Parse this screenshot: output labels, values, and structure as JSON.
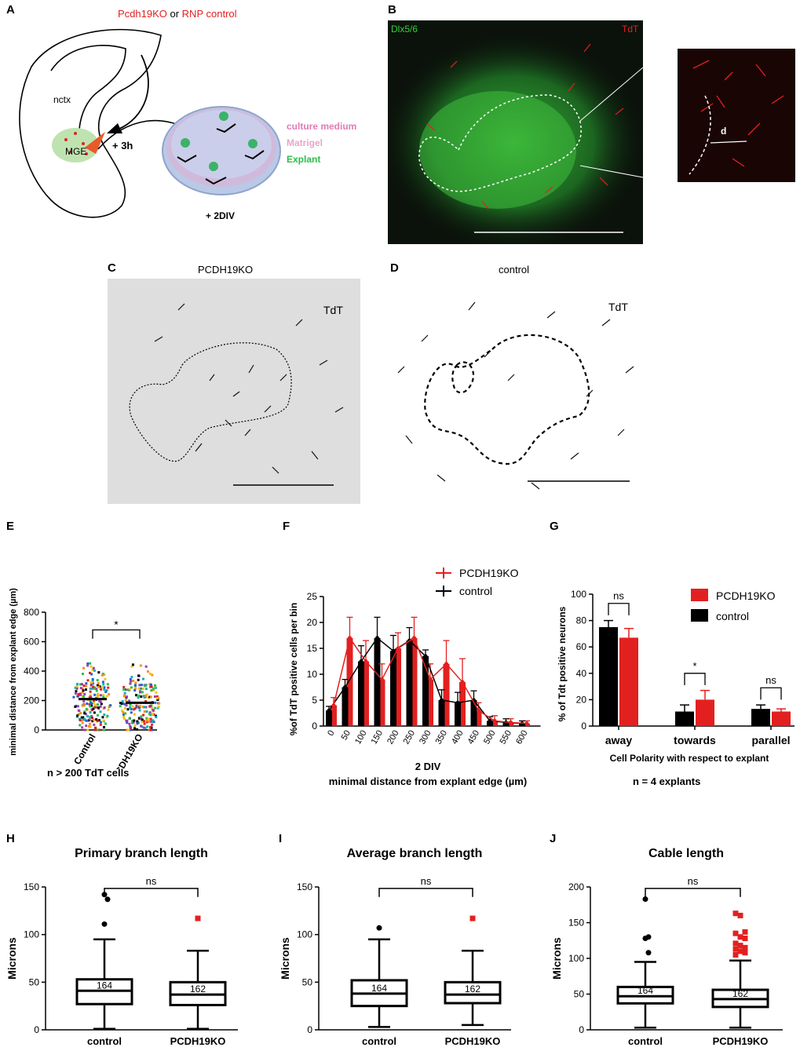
{
  "panels": {
    "A": {
      "letter": "A",
      "title_red1": "Pcdh19KO",
      "title_or": " or ",
      "title_red2": "RNP control",
      "nctx": "nctx",
      "mge": "MGE",
      "plus3h": "+ 3h",
      "culture_medium": "culture medium",
      "matrigel": "Matrigel",
      "explant": "Explant",
      "plus2div": "+ 2DIV"
    },
    "B": {
      "letter": "B",
      "dlx": "Dlx5/6",
      "tdt": "TdT",
      "d": "d"
    },
    "C": {
      "letter": "C",
      "title": "PCDH19KO",
      "tdt": "TdT"
    },
    "D": {
      "letter": "D",
      "title": "control",
      "tdt": "TdT"
    },
    "E": {
      "letter": "E",
      "n_label": "n > 200 TdT cells"
    },
    "F": {
      "letter": "F"
    },
    "G": {
      "letter": "G",
      "n_label": "n = 4 explants"
    },
    "H": {
      "letter": "H"
    },
    "I": {
      "letter": "I"
    },
    "J": {
      "letter": "J"
    }
  },
  "colors": {
    "red": "#e32020",
    "black": "#000000",
    "green": "#2bbd4a",
    "pink": "#e07bb5"
  },
  "chart_data": [
    {
      "panel": "E",
      "type": "scatter",
      "ylabel": "minimal distance from explant edge (µm)",
      "ylim": [
        0,
        800
      ],
      "yticks": [
        0,
        200,
        400,
        600,
        800
      ],
      "categories": [
        "Control",
        "PCDH19KO"
      ],
      "means": [
        210,
        185
      ],
      "significance": "*"
    },
    {
      "panel": "F",
      "type": "bar",
      "xlabel": "minimal distance from explant edge (µm)",
      "xlabel_top": "2 DIV",
      "ylabel": "%of TdT positive cells per bin",
      "ylim": [
        0,
        25
      ],
      "yticks": [
        0,
        5,
        10,
        15,
        20,
        25
      ],
      "categories": [
        "0",
        "50",
        "100",
        "150",
        "200",
        "250",
        "300",
        "350",
        "400",
        "450",
        "500",
        "550",
        "600"
      ],
      "series": [
        {
          "name": "PCDH19KO",
          "values": [
            4,
            17,
            12.5,
            9,
            15,
            17,
            9,
            12,
            8.5,
            3,
            1,
            0.7,
            0.5
          ],
          "errors": [
            1.5,
            4,
            4,
            3,
            3,
            4,
            3,
            4.5,
            4.5,
            1.5,
            1,
            0.7,
            0.5
          ]
        },
        {
          "name": "control",
          "values": [
            3,
            7.5,
            12.5,
            17,
            14.5,
            16.5,
            13.5,
            5,
            4.5,
            5,
            1,
            0.7,
            0.5
          ],
          "errors": [
            0.8,
            1.5,
            3,
            4,
            3,
            2.5,
            1.2,
            2,
            2,
            1.8,
            0.8,
            0.7,
            0.5
          ]
        }
      ]
    },
    {
      "panel": "G",
      "type": "bar",
      "xlabel": "Cell Polarity with respect to explant",
      "ylabel": "% of Tdt positive neurons",
      "ylim": [
        0,
        100
      ],
      "yticks": [
        0,
        20,
        40,
        60,
        80,
        100
      ],
      "categories": [
        "away",
        "towards",
        "parallel"
      ],
      "series": [
        {
          "name": "control",
          "values": [
            75,
            11,
            13
          ],
          "errors": [
            5,
            5,
            3
          ]
        },
        {
          "name": "PCDH19KO",
          "values": [
            67,
            20,
            11
          ],
          "errors": [
            7,
            7,
            2
          ]
        }
      ],
      "significance": [
        "ns",
        "*",
        "ns"
      ]
    },
    {
      "panel": "H",
      "type": "box",
      "title": "Primary branch length",
      "ylabel": "Microns",
      "ylim": [
        0,
        150
      ],
      "yticks": [
        0,
        50,
        100,
        150
      ],
      "categories": [
        "control",
        "PCDH19KO"
      ],
      "n": [
        "164",
        "162"
      ],
      "boxes": [
        {
          "min": 1,
          "q1": 27,
          "median": 41,
          "q3": 53,
          "max": 95,
          "outliers": [
            142,
            137,
            111
          ]
        },
        {
          "min": 1,
          "q1": 26,
          "median": 37,
          "q3": 50,
          "max": 83,
          "outliers": [
            117
          ]
        }
      ],
      "significance": "ns"
    },
    {
      "panel": "I",
      "type": "box",
      "title": "Average branch length",
      "ylabel": "Microns",
      "ylim": [
        0,
        150
      ],
      "yticks": [
        0,
        50,
        100,
        150
      ],
      "categories": [
        "control",
        "PCDH19KO"
      ],
      "n": [
        "164",
        "162"
      ],
      "boxes": [
        {
          "min": 3,
          "q1": 25,
          "median": 38,
          "q3": 52,
          "max": 95,
          "outliers": [
            107
          ]
        },
        {
          "min": 5,
          "q1": 28,
          "median": 37,
          "q3": 50,
          "max": 83,
          "outliers": [
            117
          ]
        }
      ],
      "significance": "ns"
    },
    {
      "panel": "J",
      "type": "box",
      "title": "Cable length",
      "ylabel": "Microns",
      "ylim": [
        0,
        200
      ],
      "yticks": [
        0,
        50,
        100,
        150,
        200
      ],
      "categories": [
        "control",
        "PCDH19KO"
      ],
      "n": [
        "164",
        "162"
      ],
      "boxes": [
        {
          "min": 3,
          "q1": 37,
          "median": 47,
          "q3": 60,
          "max": 95,
          "outliers": [
            183,
            130,
            128,
            108
          ]
        },
        {
          "min": 3,
          "q1": 32,
          "median": 43,
          "q3": 56,
          "max": 97,
          "outliers": [
            163,
            160,
            137,
            135,
            130,
            128,
            121,
            118,
            115,
            113,
            110,
            108,
            105
          ]
        }
      ],
      "significance": "ns"
    }
  ]
}
